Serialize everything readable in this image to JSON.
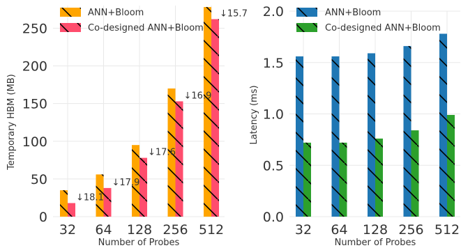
{
  "chart_data": [
    {
      "type": "bar",
      "ylabel": "Temporary HBM (MB)",
      "xlabel": "Number of Probes",
      "categories": [
        "32",
        "64",
        "128",
        "256",
        "512"
      ],
      "ylim": [
        0,
        280
      ],
      "yticks": [
        0,
        50,
        100,
        150,
        200,
        250
      ],
      "grid": true,
      "legend_position": "top-left",
      "series": [
        {
          "name": "ANN+Bloom",
          "color": "#FFA500",
          "values": [
            35,
            56,
            95,
            170,
            278
          ]
        },
        {
          "name": "Co-designed ANN+Bloom",
          "color": "#FF4D6D",
          "values": [
            18,
            38,
            78,
            153,
            262
          ]
        }
      ],
      "annotations": [
        "↓18.1",
        "↓17.9",
        "↓17.6",
        "↓16.9",
        "↓15.7"
      ]
    },
    {
      "type": "bar",
      "ylabel": "Latency (ms)",
      "xlabel": "Number of Probes",
      "categories": [
        "32",
        "64",
        "128",
        "256",
        "512"
      ],
      "ylim": [
        0,
        2.0
      ],
      "yticks": [
        0.0,
        0.5,
        1.0,
        1.5,
        2.0
      ],
      "grid": true,
      "legend_position": "top-left",
      "series": [
        {
          "name": "ANN+Bloom",
          "color": "#1F77B4",
          "values": [
            1.56,
            1.56,
            1.59,
            1.66,
            1.78
          ]
        },
        {
          "name": "Co-designed ANN+Bloom",
          "color": "#2CA02C",
          "values": [
            0.72,
            0.72,
            0.76,
            0.84,
            0.99
          ]
        }
      ]
    }
  ]
}
